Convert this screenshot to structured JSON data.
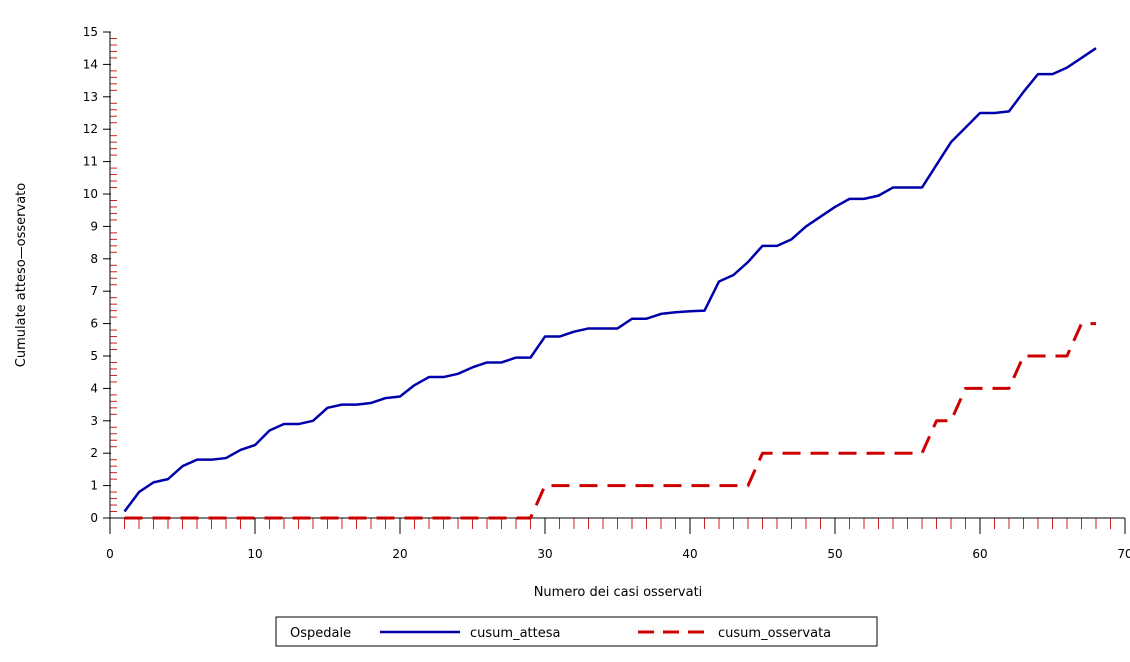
{
  "chart_data": {
    "type": "line",
    "title": "",
    "xlabel": "Numero dei casi osservati",
    "ylabel": "Cumulate atteso—osservato",
    "xlim": [
      0,
      70
    ],
    "ylim": [
      0,
      15
    ],
    "xticks": [
      0,
      10,
      20,
      30,
      40,
      50,
      60,
      70
    ],
    "yticks": [
      0,
      1,
      2,
      3,
      4,
      5,
      6,
      7,
      8,
      9,
      10,
      11,
      12,
      13,
      14,
      15
    ],
    "grid": false,
    "legend": {
      "title": "Ospedale",
      "position": "bottom"
    },
    "series": [
      {
        "name": "cusum_attesa",
        "color": "#0000aa",
        "style": "solid",
        "x": [
          1,
          2,
          3,
          4,
          5,
          6,
          7,
          8,
          9,
          10,
          11,
          12,
          13,
          14,
          15,
          16,
          17,
          18,
          19,
          20,
          21,
          22,
          23,
          24,
          25,
          26,
          27,
          28,
          29,
          30,
          31,
          32,
          33,
          34,
          35,
          36,
          37,
          38,
          39,
          40,
          41,
          42,
          43,
          44,
          45,
          46,
          47,
          48,
          49,
          50,
          51,
          52,
          53,
          54,
          55,
          56,
          57,
          58,
          59,
          60,
          61,
          62,
          63,
          64,
          65,
          66,
          67,
          68
        ],
        "y": [
          0.2,
          0.8,
          1.1,
          1.2,
          1.6,
          1.8,
          1.8,
          1.85,
          2.1,
          2.25,
          2.7,
          2.9,
          2.9,
          3.0,
          3.4,
          3.5,
          3.5,
          3.55,
          3.7,
          3.75,
          4.1,
          4.35,
          4.35,
          4.45,
          4.65,
          4.8,
          4.8,
          4.95,
          4.95,
          5.6,
          5.6,
          5.75,
          5.85,
          5.85,
          5.85,
          6.15,
          6.15,
          6.3,
          6.35,
          6.38,
          6.4,
          7.3,
          7.5,
          7.9,
          8.4,
          8.4,
          8.6,
          9.0,
          9.3,
          9.6,
          9.85,
          9.85,
          9.95,
          10.2,
          10.2,
          10.2,
          10.9,
          11.6,
          12.05,
          12.5,
          12.5,
          12.55,
          13.15,
          13.7,
          13.7,
          13.9,
          14.2,
          14.5
        ]
      },
      {
        "name": "cusum_osservata",
        "color": "#cc0000",
        "style": "dashed",
        "x": [
          1,
          29,
          30,
          44,
          45,
          56,
          57,
          58,
          59,
          60,
          61,
          62,
          63,
          64,
          65,
          66,
          67,
          68
        ],
        "y": [
          0,
          0,
          1,
          1,
          2,
          2,
          3,
          3,
          4,
          4,
          4,
          4,
          5,
          5,
          5,
          5,
          6,
          6
        ]
      }
    ]
  }
}
